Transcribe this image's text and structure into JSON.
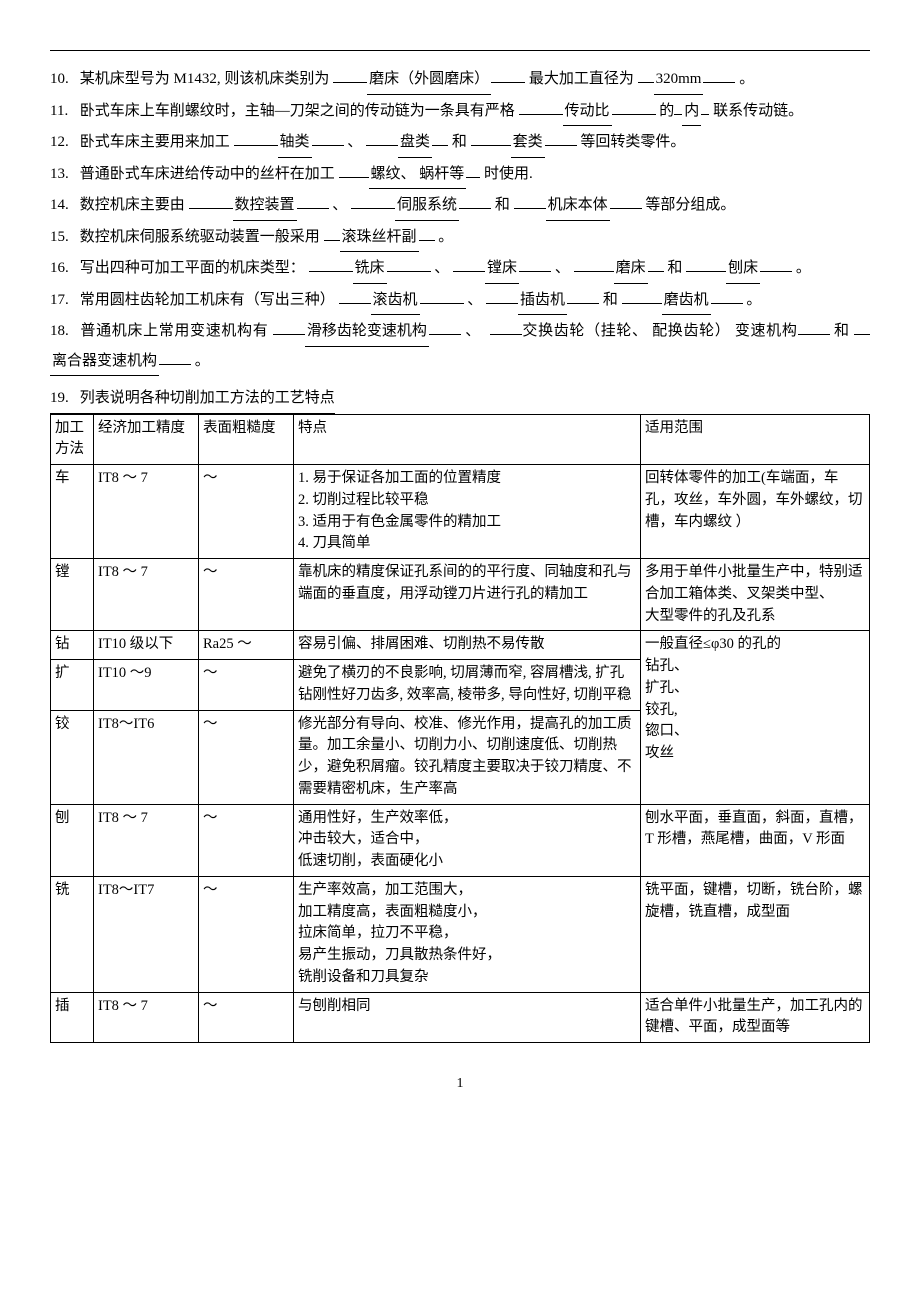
{
  "questions": {
    "q10": {
      "num": "10.",
      "t1": "某机床型号为 M1432, 则该机床类别为",
      "a1": "磨床（外圆磨床）",
      "t2": "最大加工直径为",
      "a2": "320mm",
      "t3": "。"
    },
    "q11": {
      "num": "11.",
      "t1": "卧式车床上车削螺纹时，主轴—刀架之间的传动链为一条具有严格",
      "a1": "传动比",
      "t2": "的",
      "a2": "内",
      "t3": "联系传动链。"
    },
    "q12": {
      "num": "12.",
      "t1": "卧式车床主要用来加工",
      "a1": "轴类",
      "t2": "、",
      "a2": "盘类",
      "t3": "和",
      "a3": "套类",
      "t4": " 等回转类零件。"
    },
    "q13": {
      "num": "13.",
      "t1": "普通卧式车床进给传动中的丝杆在加工",
      "a1": "螺纹、 蜗杆等",
      "t2": "时使用."
    },
    "q14": {
      "num": "14.",
      "t1": "数控机床主要由",
      "a1": "数控装置",
      "t2": "、",
      "a2": "伺服系统",
      "t3": "和",
      "a3": "机床本体",
      "t4": "等部分组成。"
    },
    "q15": {
      "num": "15.",
      "t1": "数控机床伺服系统驱动装置一般采用",
      "a1": "滚珠丝杆副",
      "t2": "。"
    },
    "q16": {
      "num": "16.",
      "t1": "写出四种可加工平面的机床类型：",
      "a1": "铣床",
      "t2": "、",
      "a2": "镗床",
      "t3": "、",
      "a3": "磨床",
      "t4": "和",
      "a4": "刨床",
      "t5": "。"
    },
    "q17": {
      "num": "17.",
      "t1": "常用圆柱齿轮加工机床有（写出三种）",
      "a1": "滚齿机",
      "t2": "、",
      "a2": "插齿机",
      "t3": "和",
      "a3": "磨齿机",
      "t4": "。"
    },
    "q18": {
      "num": "18.",
      "t1": "普通机床上常用变速机构有",
      "a1": "滑移齿轮变速机构",
      "t2": "、",
      "a2": "交换齿轮（挂轮、 配换齿轮） 变速机构",
      "t3": "和",
      "a3": "离合器变速机构",
      "t4": "。"
    },
    "q19": {
      "num": "19.",
      "t1": "列表说明各种切削加工方法的工艺特点"
    }
  },
  "table": {
    "headers": [
      "加工方法",
      "经济加工精度",
      "表面粗糙度",
      "特点",
      "适用范围"
    ],
    "rows": [
      {
        "method": "车",
        "precision": "IT8 ～ 7",
        "rough": "～",
        "feature": "1. 易于保证各加工面的位置精度\n2. 切削过程比较平稳\n3. 适用于有色金属零件的精加工\n4. 刀具简单",
        "scope": "回转体零件的加工(车端面，车孔，攻丝，车外圆，车外螺纹，切槽，车内螺纹 ）"
      },
      {
        "method": "镗",
        "precision": "IT8 ～ 7",
        "rough": "～",
        "feature": "靠机床的精度保证孔系间的的平行度、同轴度和孔与端面的垂直度，用浮动镗刀片进行孔的精加工",
        "scope": "多用于单件小批量生产中，特别适合加工箱体类、叉架类中型、\n大型零件的孔及孔系"
      },
      {
        "method": "钻",
        "precision": "IT10 级以下",
        "rough": "Ra25 ～",
        "feature": "容易引偏、排屑困难、切削热不易传散",
        "scope": ""
      },
      {
        "method": "扩",
        "precision": "IT10 ～9",
        "rough": "～",
        "feature": "避免了横刃的不良影响, 切屑薄而窄, 容屑槽浅, 扩孔钻刚性好刀齿多, 效率高, 棱带多, 导向性好, 切削平稳",
        "scope": "一般直径≤φ30 的孔的\n钻孔、\n扩孔、"
      },
      {
        "method": "铰",
        "precision": "IT8～IT6",
        "rough": "～",
        "feature": "修光部分有导向、校准、修光作用，提高孔的加工质量。加工余量小、切削力小、切削速度低、切削热少，避免积屑瘤。铰孔精度主要取决于铰刀精度、不需要精密机床，生产率高",
        "scope": "铰孔,\n锪口、\n攻丝"
      },
      {
        "method": "刨",
        "precision": "IT8 ～ 7",
        "rough": "～",
        "feature": "通用性好，生产效率低，\n冲击较大，适合中，\n低速切削，表面硬化小",
        "scope": "刨水平面，垂直面，斜面，直槽，T 形槽，燕尾槽，曲面，V 形面"
      },
      {
        "method": "铣",
        "precision": "IT8～IT7",
        "rough": "～",
        "feature": "生产率效高，加工范围大，\n加工精度高，表面粗糙度小，\n拉床简单，拉刀不平稳，\n易产生振动，刀具散热条件好，\n铣削设备和刀具复杂",
        "scope": "铣平面，键槽，切断，铣台阶，螺旋槽，铣直槽，成型面"
      },
      {
        "method": "插",
        "precision": "IT8 ～ 7",
        "rough": "～",
        "feature": "与刨削相同",
        "scope": "适合单件小批量生产，加工孔内的键槽、平面，成型面等"
      }
    ]
  },
  "page_number": "1"
}
